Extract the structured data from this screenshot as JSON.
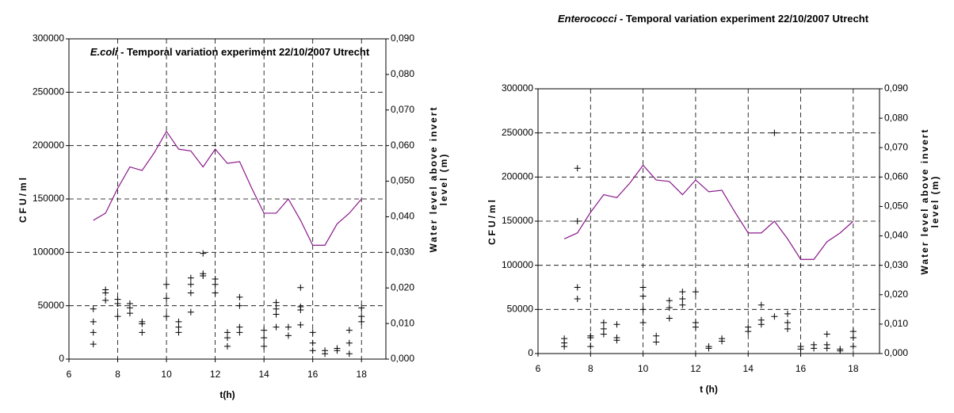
{
  "chart_data": [
    {
      "type": "scatter",
      "title_italic": "E.coli",
      "title": " - Temporal variation experiment 22/10/2007 Utrecht",
      "xlabel": "t(h)",
      "ylabel": "CFU/ml",
      "y2label": [
        "Water level above invert",
        "level (m)"
      ],
      "xlim": [
        6,
        19
      ],
      "xticks": [
        6,
        8,
        10,
        12,
        14,
        16,
        18
      ],
      "ylim": [
        0,
        300000
      ],
      "yticks": [
        0,
        50000,
        100000,
        150000,
        200000,
        250000,
        300000
      ],
      "y2lim": [
        0,
        0.09
      ],
      "y2ticks": [
        {
          "value": 0,
          "label": "0,000"
        },
        {
          "value": 0.01,
          "label": "0,010"
        },
        {
          "value": 0.02,
          "label": "0,020"
        },
        {
          "value": 0.03,
          "label": "0,030"
        },
        {
          "value": 0.04,
          "label": "0,040"
        },
        {
          "value": 0.05,
          "label": "0,050"
        },
        {
          "value": 0.06,
          "label": "0,060"
        },
        {
          "value": 0.07,
          "label": "0,070"
        },
        {
          "value": 0.08,
          "label": "0,080"
        },
        {
          "value": 0.09,
          "label": "0,090"
        }
      ],
      "grid": true,
      "series": [
        {
          "marker": "plus",
          "color": "#000000",
          "x": [
            7,
            7,
            7,
            7,
            7.5,
            7.5,
            7.5,
            8,
            8,
            8,
            8.5,
            8.5,
            8.5,
            9,
            9,
            9,
            10,
            10,
            10,
            10.5,
            10.5,
            10.5,
            11,
            11,
            11,
            11,
            11.5,
            11.5,
            11.5,
            12,
            12,
            12,
            12.5,
            12.5,
            12.5,
            13,
            13,
            13,
            13,
            14,
            14,
            14,
            14.5,
            14.5,
            14.5,
            14.5,
            15,
            15,
            15.5,
            15.5,
            15.5,
            15.5,
            16,
            16,
            16,
            16.5,
            16.5,
            17,
            17,
            17.5,
            17.5,
            17.5,
            18,
            18,
            18
          ],
          "values": [
            47000,
            35000,
            25000,
            14000,
            65000,
            62000,
            55000,
            56000,
            52000,
            40000,
            52000,
            48000,
            43000,
            35000,
            33000,
            25000,
            70000,
            57000,
            40000,
            35000,
            30000,
            25000,
            76000,
            70000,
            62000,
            44000,
            99000,
            80000,
            78000,
            75000,
            70000,
            62000,
            25000,
            20000,
            12000,
            58000,
            50000,
            30000,
            25000,
            27000,
            20000,
            12000,
            53000,
            47000,
            42000,
            30000,
            30000,
            22000,
            67000,
            49000,
            46000,
            32000,
            25000,
            15000,
            8000,
            8000,
            5000,
            10000,
            8000,
            27000,
            15000,
            5000,
            48000,
            40000,
            35000
          ]
        },
        {
          "marker": "line",
          "color": "#8b1a8b",
          "axis": "y2",
          "x": [
            7,
            7.5,
            8,
            8.5,
            9,
            9.5,
            10,
            10.5,
            11,
            11.5,
            12,
            12.5,
            13,
            13.5,
            14,
            14.5,
            15,
            15.5,
            16,
            16.5,
            17,
            17.5,
            18
          ],
          "values": [
            0.039,
            0.041,
            0.048,
            0.054,
            0.053,
            0.058,
            0.064,
            0.059,
            0.0585,
            0.054,
            0.059,
            0.055,
            0.0555,
            0.048,
            0.041,
            0.041,
            0.045,
            0.039,
            0.032,
            0.032,
            0.038,
            0.041,
            0.045
          ]
        }
      ]
    },
    {
      "type": "scatter",
      "title_italic": "Enterococci",
      "title": " - Temporal variation experiment 22/10/2007 Utrecht",
      "xlabel": "t (h)",
      "ylabel": "CFU/ml",
      "y2label": [
        "Water level above invert",
        "level (m)"
      ],
      "xlim": [
        6,
        19
      ],
      "xticks": [
        6,
        8,
        10,
        12,
        14,
        16,
        18
      ],
      "ylim": [
        0,
        300000
      ],
      "yticks": [
        0,
        50000,
        100000,
        150000,
        200000,
        250000,
        300000
      ],
      "y2lim": [
        0,
        0.09
      ],
      "y2ticks": [
        {
          "value": 0,
          "label": "0,000"
        },
        {
          "value": 0.01,
          "label": "0,010"
        },
        {
          "value": 0.02,
          "label": "0,020"
        },
        {
          "value": 0.03,
          "label": "0,030"
        },
        {
          "value": 0.04,
          "label": "0,040"
        },
        {
          "value": 0.05,
          "label": "0,050"
        },
        {
          "value": 0.06,
          "label": "0,060"
        },
        {
          "value": 0.07,
          "label": "0,070"
        },
        {
          "value": 0.08,
          "label": "0,080"
        },
        {
          "value": 0.09,
          "label": "0,090"
        }
      ],
      "grid": true,
      "series": [
        {
          "marker": "plus",
          "color": "#000000",
          "x": [
            7,
            7,
            7,
            7.5,
            7.5,
            7.5,
            7.5,
            8,
            8,
            8,
            8.5,
            8.5,
            8.5,
            9,
            9,
            9,
            10,
            10,
            10,
            10,
            10.5,
            10.5,
            11,
            11,
            11,
            11.5,
            11.5,
            11.5,
            12,
            12,
            12,
            12.5,
            12.5,
            13,
            13,
            14,
            14,
            14.5,
            14.5,
            14.5,
            15,
            15,
            15.5,
            15.5,
            15.5,
            16,
            16,
            16.5,
            16.5,
            17,
            17,
            17,
            17.5,
            17.5,
            18,
            18,
            18
          ],
          "values": [
            17000,
            12000,
            8000,
            210000,
            150000,
            75000,
            62000,
            20000,
            18000,
            8000,
            35000,
            28000,
            22000,
            33000,
            18000,
            15000,
            75000,
            65000,
            50000,
            35000,
            20000,
            13000,
            60000,
            52000,
            40000,
            70000,
            62000,
            55000,
            70000,
            35000,
            30000,
            8000,
            6000,
            17000,
            14000,
            30000,
            25000,
            55000,
            38000,
            33000,
            250000,
            42000,
            45000,
            35000,
            28000,
            8000,
            5000,
            10000,
            6000,
            22000,
            10000,
            6000,
            5000,
            3000,
            25000,
            18000,
            8000
          ]
        },
        {
          "marker": "line",
          "color": "#8b1a8b",
          "axis": "y2",
          "x": [
            7,
            7.5,
            8,
            8.5,
            9,
            9.5,
            10,
            10.5,
            11,
            11.5,
            12,
            12.5,
            13,
            13.5,
            14,
            14.5,
            15,
            15.5,
            16,
            16.5,
            17,
            17.5,
            18
          ],
          "values": [
            0.039,
            0.041,
            0.048,
            0.054,
            0.053,
            0.058,
            0.064,
            0.059,
            0.0585,
            0.054,
            0.059,
            0.055,
            0.0555,
            0.048,
            0.041,
            0.041,
            0.045,
            0.039,
            0.032,
            0.032,
            0.038,
            0.041,
            0.045
          ]
        }
      ]
    }
  ]
}
